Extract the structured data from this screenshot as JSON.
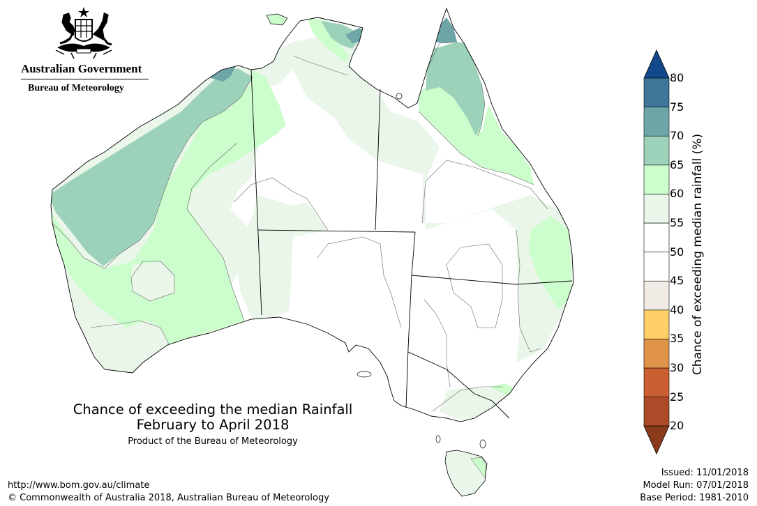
{
  "logo": {
    "government": "Australian Government",
    "bureau": "Bureau of Meteorology",
    "crest_icon": "coat-of-arms-icon"
  },
  "map": {
    "title": "Chance of exceeding the median Rainfall",
    "subtitle": "February to April 2018",
    "product": "Product of the Bureau of Meteorology",
    "region": "Australia"
  },
  "legend": {
    "label": "Chance of exceeding median rainfall (%)",
    "ticks": [
      "20",
      "25",
      "30",
      "35",
      "40",
      "45",
      "50",
      "55",
      "60",
      "65",
      "70",
      "75",
      "80"
    ],
    "bins": [
      {
        "range": "<20",
        "color": "#8c3a1c"
      },
      {
        "range": "20-25",
        "color": "#ad4a28"
      },
      {
        "range": "25-30",
        "color": "#cc5f32"
      },
      {
        "range": "30-35",
        "color": "#e0944a"
      },
      {
        "range": "35-40",
        "color": "#fecf66"
      },
      {
        "range": "40-45",
        "color": "#f1ebe6"
      },
      {
        "range": "45-50",
        "color": "#ffffff"
      },
      {
        "range": "50-55",
        "color": "#ffffff"
      },
      {
        "range": "55-60",
        "color": "#ebf6ea"
      },
      {
        "range": "60-65",
        "color": "#ccfdcc"
      },
      {
        "range": "65-70",
        "color": "#9dd2ba"
      },
      {
        "range": "70-75",
        "color": "#6ea6a8"
      },
      {
        "range": "75-80",
        "color": "#3e7598"
      },
      {
        "range": ">80",
        "color": "#12498a"
      }
    ]
  },
  "footer": {
    "url": "http://www.bom.gov.au/climate",
    "copyright": "© Commonwealth of Australia 2018, Australian Bureau of Meteorology",
    "issued": "Issued: 11/01/2018",
    "model_run": "Model Run: 07/01/2018",
    "base_period": "Base Period: 1981-2010"
  }
}
